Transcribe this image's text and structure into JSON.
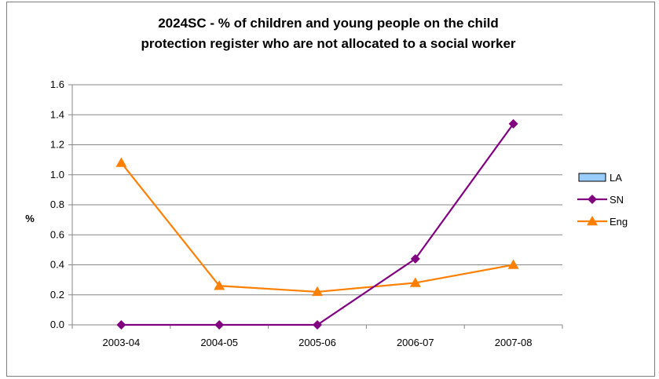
{
  "chart_data": {
    "type": "line",
    "title_lines": [
      "2024SC - % of children and young people on the child",
      "protection register who are not allocated to a social worker"
    ],
    "xlabel": "",
    "ylabel": "%",
    "categories": [
      "2003-04",
      "2004-05",
      "2005-06",
      "2006-07",
      "2007-08"
    ],
    "ylim": [
      0,
      1.6
    ],
    "yticks": [
      "0.0",
      "0.2",
      "0.4",
      "0.6",
      "0.8",
      "1.0",
      "1.2",
      "1.4",
      "1.6"
    ],
    "grid": true,
    "legend_position": "right",
    "series": [
      {
        "name": "LA",
        "kind": "bar",
        "color": "#99ccff",
        "values": [
          null,
          null,
          null,
          null,
          null
        ]
      },
      {
        "name": "SN",
        "kind": "line",
        "marker": "diamond",
        "color": "#800080",
        "values": [
          0.0,
          0.0,
          0.0,
          0.44,
          1.34
        ]
      },
      {
        "name": "Eng",
        "kind": "line",
        "marker": "triangle",
        "color": "#ff8000",
        "values": [
          1.08,
          0.26,
          0.22,
          0.28,
          0.4
        ]
      }
    ]
  }
}
